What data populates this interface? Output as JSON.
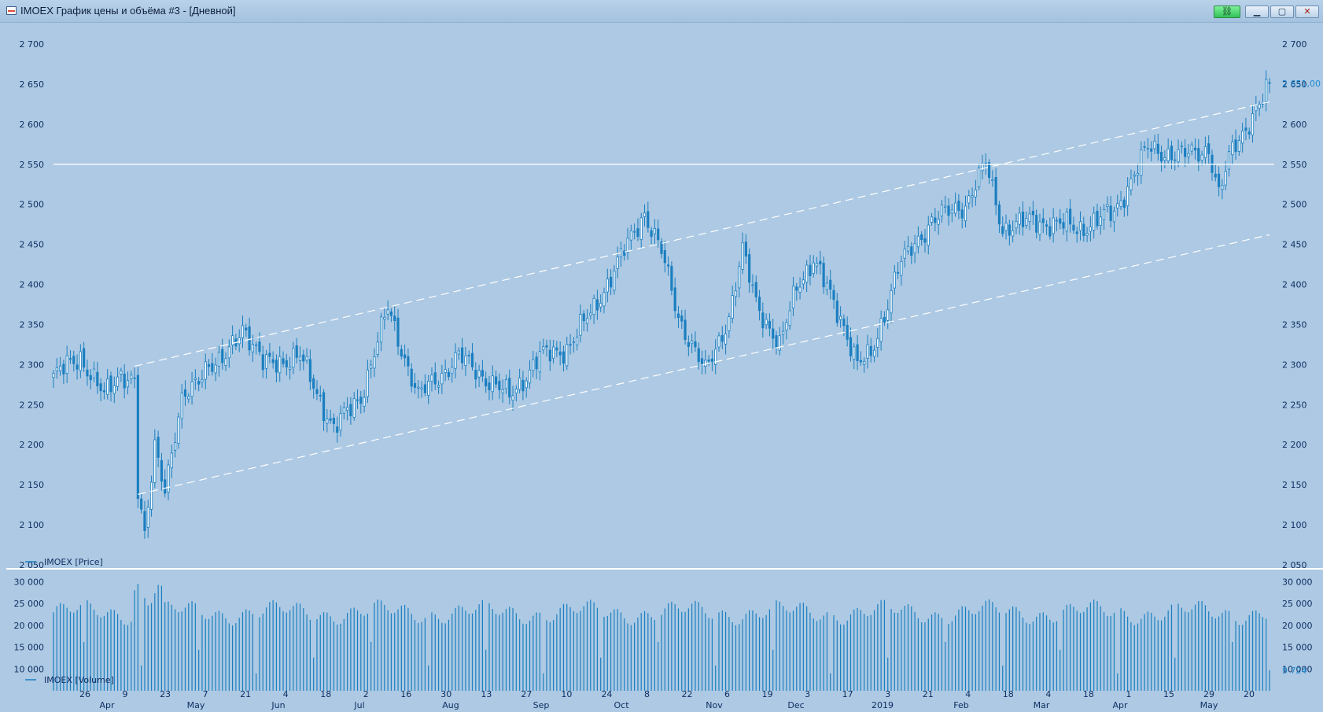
{
  "window": {
    "title": "IMOEX График цены и объёма #3 - [Дневной]",
    "link_icon": "link-icon",
    "minimize_icon": "minimize-icon",
    "maximize_icon": "maximize-icon",
    "close_icon": "close-icon"
  },
  "colors": {
    "background": "#adc9e3",
    "candle": "#1a7fc0",
    "text": "#0f2f63",
    "level_line": "#ffffff",
    "last_price": "#1e8ad0"
  },
  "chart_data": [
    {
      "type": "candlestick",
      "legend": "IMOEX [Price]",
      "ylim": [
        2050,
        2700
      ],
      "yticks": [
        2050,
        2100,
        2150,
        2200,
        2250,
        2300,
        2350,
        2400,
        2450,
        2500,
        2550,
        2600,
        2650,
        2700
      ],
      "ytick_labels": [
        "2 050",
        "2 100",
        "2 150",
        "2 200",
        "2 250",
        "2 300",
        "2 350",
        "2 400",
        "2 450",
        "2 500",
        "2 550",
        "2 600",
        "2 650",
        "2 700"
      ],
      "last_value": 2651.0,
      "last_value_label": "2 651,00",
      "horizontal_level": 2550,
      "grid": false,
      "series_anchor_points": [
        {
          "x": 0,
          "y": 2285
        },
        {
          "x": 8,
          "y": 2310
        },
        {
          "x": 15,
          "y": 2260
        },
        {
          "x": 20,
          "y": 2290
        },
        {
          "x": 24,
          "y": 2280
        },
        {
          "x": 25,
          "y": 2140
        },
        {
          "x": 27,
          "y": 2080
        },
        {
          "x": 30,
          "y": 2200
        },
        {
          "x": 33,
          "y": 2150
        },
        {
          "x": 38,
          "y": 2250
        },
        {
          "x": 45,
          "y": 2300
        },
        {
          "x": 50,
          "y": 2300
        },
        {
          "x": 56,
          "y": 2350
        },
        {
          "x": 62,
          "y": 2300
        },
        {
          "x": 73,
          "y": 2310
        },
        {
          "x": 83,
          "y": 2220
        },
        {
          "x": 91,
          "y": 2260
        },
        {
          "x": 99,
          "y": 2370
        },
        {
          "x": 108,
          "y": 2260
        },
        {
          "x": 120,
          "y": 2310
        },
        {
          "x": 135,
          "y": 2260
        },
        {
          "x": 144,
          "y": 2310
        },
        {
          "x": 152,
          "y": 2320
        },
        {
          "x": 160,
          "y": 2370
        },
        {
          "x": 170,
          "y": 2450
        },
        {
          "x": 175,
          "y": 2490
        },
        {
          "x": 180,
          "y": 2440
        },
        {
          "x": 185,
          "y": 2360
        },
        {
          "x": 193,
          "y": 2290
        },
        {
          "x": 200,
          "y": 2360
        },
        {
          "x": 204,
          "y": 2440
        },
        {
          "x": 208,
          "y": 2380
        },
        {
          "x": 215,
          "y": 2320
        },
        {
          "x": 220,
          "y": 2400
        },
        {
          "x": 225,
          "y": 2430
        },
        {
          "x": 234,
          "y": 2350
        },
        {
          "x": 238,
          "y": 2300
        },
        {
          "x": 242,
          "y": 2310
        },
        {
          "x": 250,
          "y": 2420
        },
        {
          "x": 260,
          "y": 2480
        },
        {
          "x": 270,
          "y": 2500
        },
        {
          "x": 276,
          "y": 2550
        },
        {
          "x": 281,
          "y": 2470
        },
        {
          "x": 290,
          "y": 2480
        },
        {
          "x": 304,
          "y": 2470
        },
        {
          "x": 314,
          "y": 2490
        },
        {
          "x": 324,
          "y": 2570
        },
        {
          "x": 334,
          "y": 2560
        },
        {
          "x": 342,
          "y": 2570
        },
        {
          "x": 345,
          "y": 2510
        },
        {
          "x": 349,
          "y": 2570
        },
        {
          "x": 355,
          "y": 2610
        },
        {
          "x": 358,
          "y": 2630
        },
        {
          "x": 360,
          "y": 2651
        }
      ],
      "x_day_labels": [
        "26",
        "9",
        "23",
        "7",
        "21",
        "4",
        "18",
        "2",
        "16",
        "30",
        "13",
        "27",
        "10",
        "24",
        "8",
        "22",
        "6",
        "19",
        "3",
        "17",
        "3",
        "21",
        "4",
        "18",
        "4",
        "18",
        "1",
        "15",
        "29",
        "20"
      ],
      "x_month_labels": [
        "Apr",
        "May",
        "Jun",
        "Jul",
        "Aug",
        "Sep",
        "Oct",
        "Nov",
        "Dec",
        "2019",
        "Feb",
        "Mar",
        "Apr",
        "May"
      ]
    },
    {
      "type": "bar",
      "legend": "IMOEX [Volume]",
      "ylim": [
        5000,
        31000
      ],
      "yticks": [
        10000,
        15000,
        20000,
        25000,
        30000
      ],
      "ytick_labels": [
        "10 000",
        "15 000",
        "20 000",
        "25 000",
        "30 000"
      ],
      "last_value": 9724,
      "last_value_label": "9 724"
    }
  ]
}
